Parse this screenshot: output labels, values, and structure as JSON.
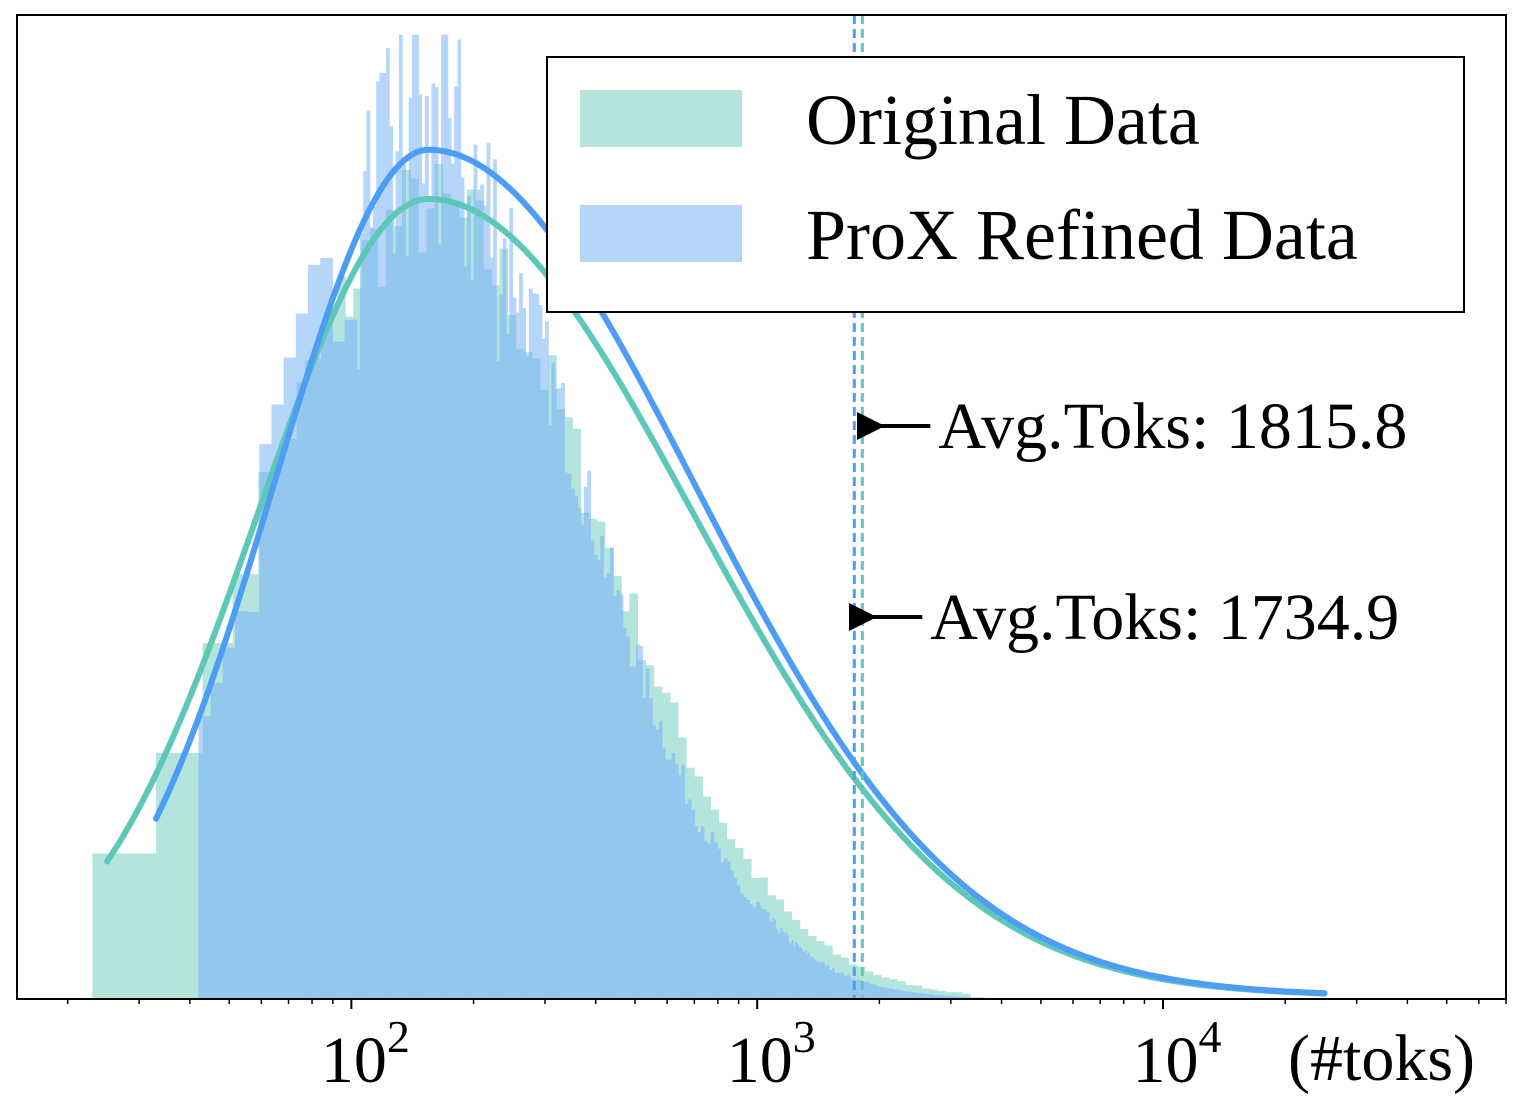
{
  "chart_data": {
    "type": "histogram",
    "title": "",
    "xlabel": "(#toks)",
    "ylabel": "",
    "x_scale": "log",
    "xlim": [
      15,
      70000
    ],
    "x_ticks": [
      {
        "value": 100,
        "base": "10",
        "exp": "2"
      },
      {
        "value": 1000,
        "base": "10",
        "exp": "3"
      },
      {
        "value": 10000,
        "base": "10",
        "exp": "4"
      }
    ],
    "y_ticks_shown": false,
    "grid": false,
    "legend": {
      "placement": "top-right",
      "entries": [
        {
          "label": "Original Data",
          "color": "#b3e5dc"
        },
        {
          "label": "ProX Refined Data",
          "color": "#b5d5fa"
        }
      ]
    },
    "series": [
      {
        "name": "Original Data",
        "fill_color": "#b3e5dc",
        "curve_color": "#5ec8b8",
        "fit": {
          "peak_tokens": 155,
          "log10_sigma": 0.42,
          "relative_peak": 0.81
        },
        "mean_tokens": 1815.8
      },
      {
        "name": "ProX Refined Data",
        "fill_color": "#b5d5fa",
        "curve_color": "#4d9df5",
        "fit": {
          "peak_tokens": 155,
          "log10_sigma": 0.38,
          "relative_peak": 0.86
        },
        "mean_tokens": 1734.9
      }
    ],
    "annotations": [
      {
        "text": "Avg.Toks: 1815.8",
        "x": 1815.8,
        "position": "upper"
      },
      {
        "text": "Avg.Toks: 1734.9",
        "x": 1734.9,
        "position": "lower"
      }
    ]
  }
}
